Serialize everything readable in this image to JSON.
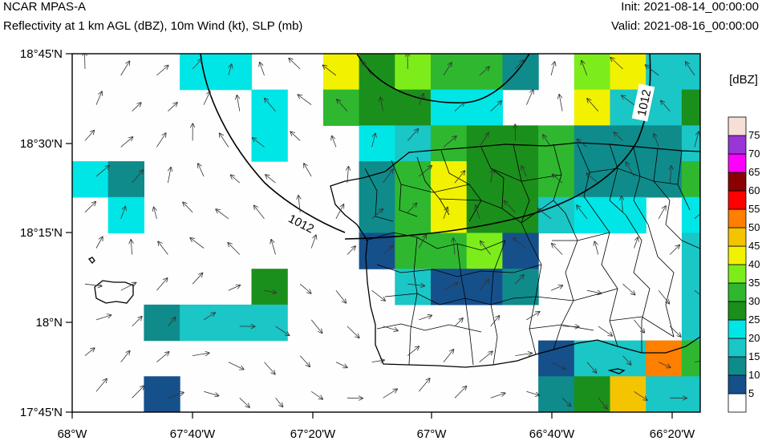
{
  "header": {
    "model": "NCAR MPAS-A",
    "fields": "Reflectivity at 1 km AGL (dBZ), 10m Wind (kt), SLP (mb)",
    "init": "Init: 2021-08-14_00:00:00",
    "valid": "Valid: 2021-08-16_00:00:00"
  },
  "map": {
    "x_ticks": [
      "68°W",
      "67°40'W",
      "67°20'W",
      "67°W",
      "66°40'W",
      "66°20'W"
    ],
    "y_ticks": [
      "18°45'N",
      "18°30'N",
      "18°15'N",
      "18°N",
      "17°45'N"
    ],
    "isobar_labels": [
      "1012",
      "1012"
    ]
  },
  "colorbar": {
    "unit": "[dBZ]",
    "levels": [
      "5",
      "10",
      "15",
      "20",
      "25",
      "30",
      "35",
      "40",
      "45",
      "50",
      "55",
      "60",
      "65",
      "70",
      "75"
    ],
    "colors": [
      "#ffffff",
      "#16508b",
      "#0f8b8b",
      "#1ac6c6",
      "#00e6e6",
      "#1b8f1b",
      "#2fb82f",
      "#7ced1a",
      "#f2f200",
      "#f5c400",
      "#ff7f00",
      "#ff0000",
      "#8b0000",
      "#ff00ff",
      "#9a35d8",
      "#f5dfd6"
    ]
  }
}
